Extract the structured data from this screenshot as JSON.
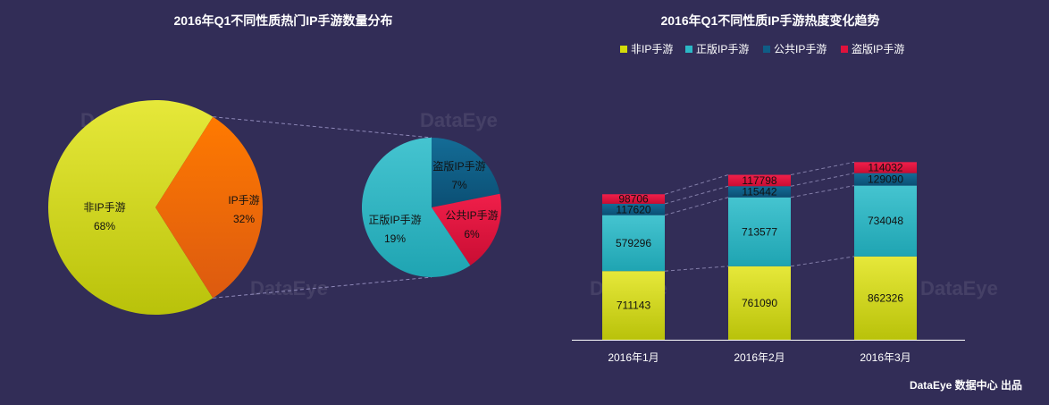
{
  "watermark": "DataEye",
  "footer": "DataEye 数据中心 出品",
  "chart_data": [
    {
      "type": "pie",
      "title": "2016年Q1不同性质热门IP手游数量分布",
      "slices": [
        {
          "label": "非IP手游",
          "value": 68,
          "display": "68%",
          "color": "#d4dc0a"
        },
        {
          "label": "IP手游",
          "value": 32,
          "display": "32%",
          "color": "#f2680a"
        }
      ],
      "breakdown_of": "IP手游",
      "breakdown": [
        {
          "label": "正版IP手游",
          "value": 19,
          "display": "19%",
          "color": "#2bb8c6"
        },
        {
          "label": "盗版IP手游",
          "value": 7,
          "display": "7%",
          "color": "#0f5d86"
        },
        {
          "label": "公共IP手游",
          "value": 6,
          "display": "6%",
          "color": "#e0123c"
        }
      ]
    },
    {
      "type": "bar",
      "stacked": true,
      "title": "2016年Q1不同性质IP手游热度变化趋势",
      "categories": [
        "2016年1月",
        "2016年2月",
        "2016年3月"
      ],
      "legend_position": "top",
      "series": [
        {
          "name": "非IP手游",
          "color": "#d4dc0a",
          "values": [
            711143,
            761090,
            862326
          ]
        },
        {
          "name": "正版IP手游",
          "color": "#2bb8c6",
          "values": [
            579296,
            713577,
            734048
          ]
        },
        {
          "name": "公共IP手游",
          "color": "#0f5d86",
          "values": [
            117620,
            115442,
            129090
          ]
        },
        {
          "name": "盗版IP手游",
          "color": "#e0123c",
          "values": [
            98706,
            117798,
            114032
          ]
        }
      ]
    }
  ]
}
